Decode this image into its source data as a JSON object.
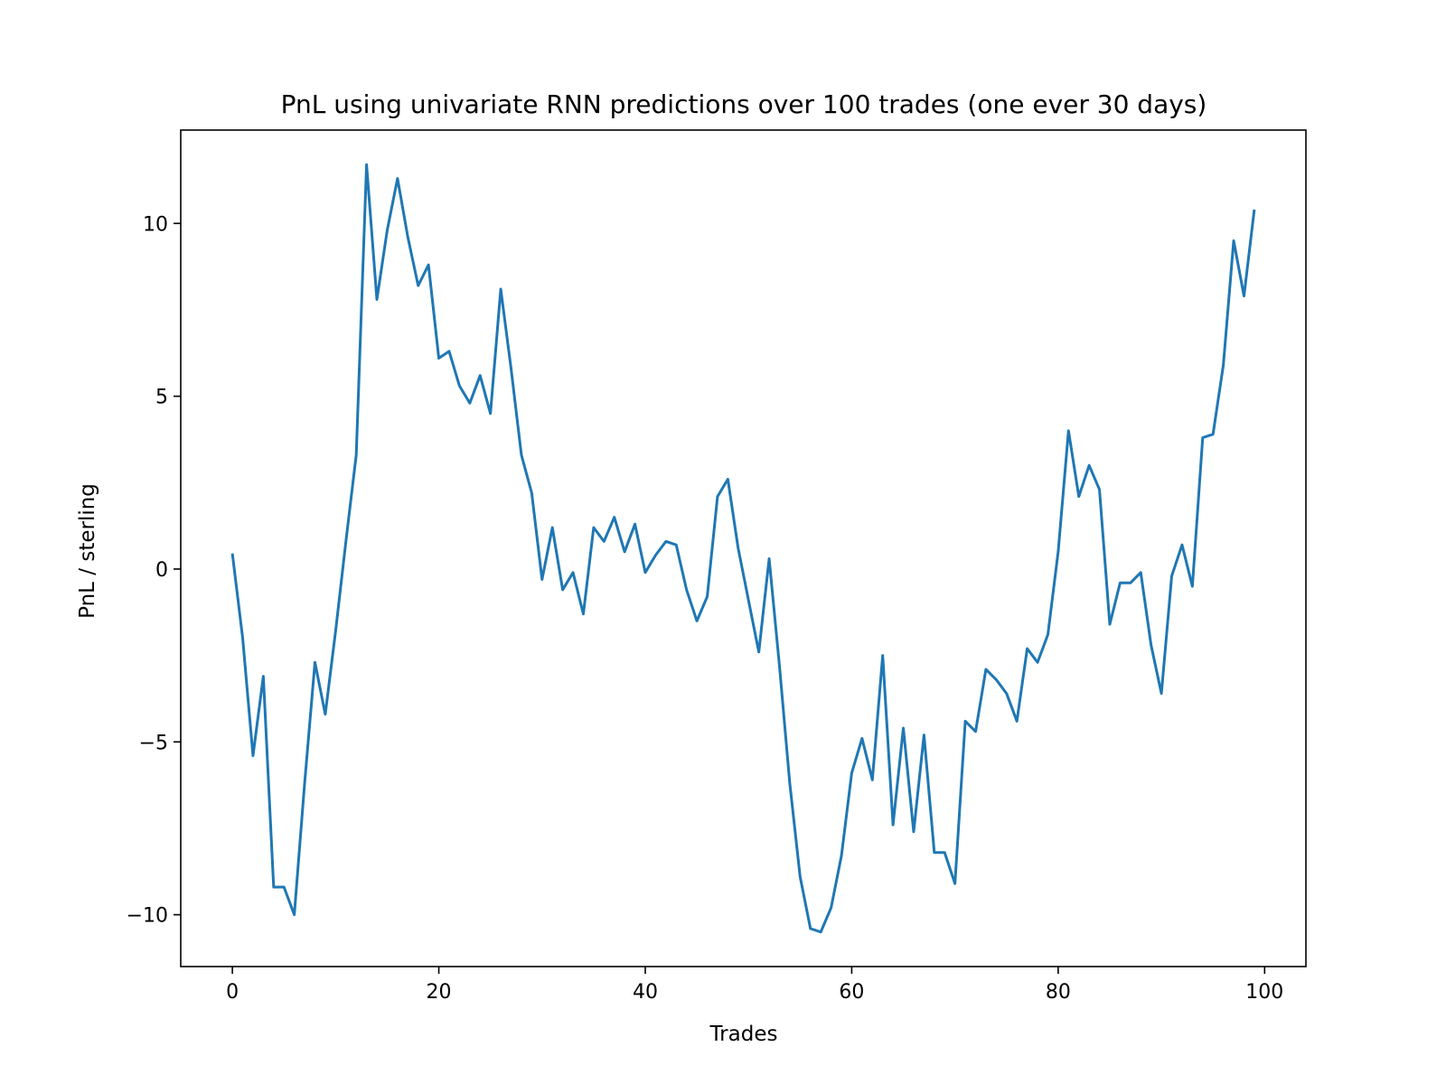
{
  "chart_data": {
    "type": "line",
    "title": "PnL using univariate RNN predictions over 100 trades (one ever 30 days)",
    "xlabel": "Trades",
    "ylabel": "PnL / sterling",
    "xlim": [
      -5,
      104
    ],
    "ylim": [
      -11.5,
      12.7
    ],
    "xticks": [
      0,
      20,
      40,
      60,
      80,
      100
    ],
    "yticks": [
      -10,
      -5,
      0,
      5,
      10
    ],
    "ytick_labels": [
      "−10",
      "−5",
      "0",
      "5",
      "10"
    ],
    "grid": false,
    "series": [
      {
        "color": "#1f77b4",
        "x": [
          0,
          1,
          2,
          3,
          4,
          5,
          6,
          7,
          8,
          9,
          10,
          11,
          12,
          13,
          14,
          15,
          16,
          17,
          18,
          19,
          20,
          21,
          22,
          23,
          24,
          25,
          26,
          27,
          28,
          29,
          30,
          31,
          32,
          33,
          34,
          35,
          36,
          37,
          38,
          39,
          40,
          41,
          42,
          43,
          44,
          45,
          46,
          47,
          48,
          49,
          50,
          51,
          52,
          53,
          54,
          55,
          56,
          57,
          58,
          59,
          60,
          61,
          62,
          63,
          64,
          65,
          66,
          67,
          68,
          69,
          70,
          71,
          72,
          73,
          74,
          75,
          76,
          77,
          78,
          79,
          80,
          81,
          82,
          83,
          84,
          85,
          86,
          87,
          88,
          89,
          90,
          91,
          92,
          93,
          94,
          95,
          96,
          97,
          98,
          99
        ],
        "y": [
          0.45,
          -2.0,
          -5.4,
          -3.1,
          -9.2,
          -9.2,
          -10.0,
          -6.2,
          -2.7,
          -4.2,
          -1.8,
          0.8,
          3.3,
          11.7,
          7.8,
          9.8,
          11.3,
          9.6,
          8.2,
          8.8,
          6.1,
          6.3,
          5.3,
          4.8,
          5.6,
          4.5,
          8.1,
          5.8,
          3.3,
          2.2,
          -0.3,
          1.2,
          -0.6,
          -0.1,
          -1.3,
          1.2,
          0.8,
          1.5,
          0.5,
          1.3,
          -0.1,
          0.4,
          0.8,
          0.7,
          -0.6,
          -1.5,
          -0.8,
          2.1,
          2.6,
          0.6,
          -0.9,
          -2.4,
          0.3,
          -2.8,
          -6.2,
          -8.9,
          -10.4,
          -10.5,
          -9.8,
          -8.3,
          -5.9,
          -4.9,
          -6.1,
          -2.5,
          -7.4,
          -4.6,
          -7.6,
          -4.8,
          -8.2,
          -8.2,
          -9.1,
          -4.4,
          -4.7,
          -2.9,
          -3.2,
          -3.6,
          -4.4,
          -2.3,
          -2.7,
          -1.9,
          0.5,
          4.0,
          2.1,
          3.0,
          2.3,
          -1.6,
          -0.4,
          -0.4,
          -0.1,
          -2.2,
          -3.6,
          -0.2,
          0.7,
          -0.5,
          3.8,
          3.9,
          5.9,
          9.5,
          7.9,
          10.4
        ]
      }
    ]
  }
}
